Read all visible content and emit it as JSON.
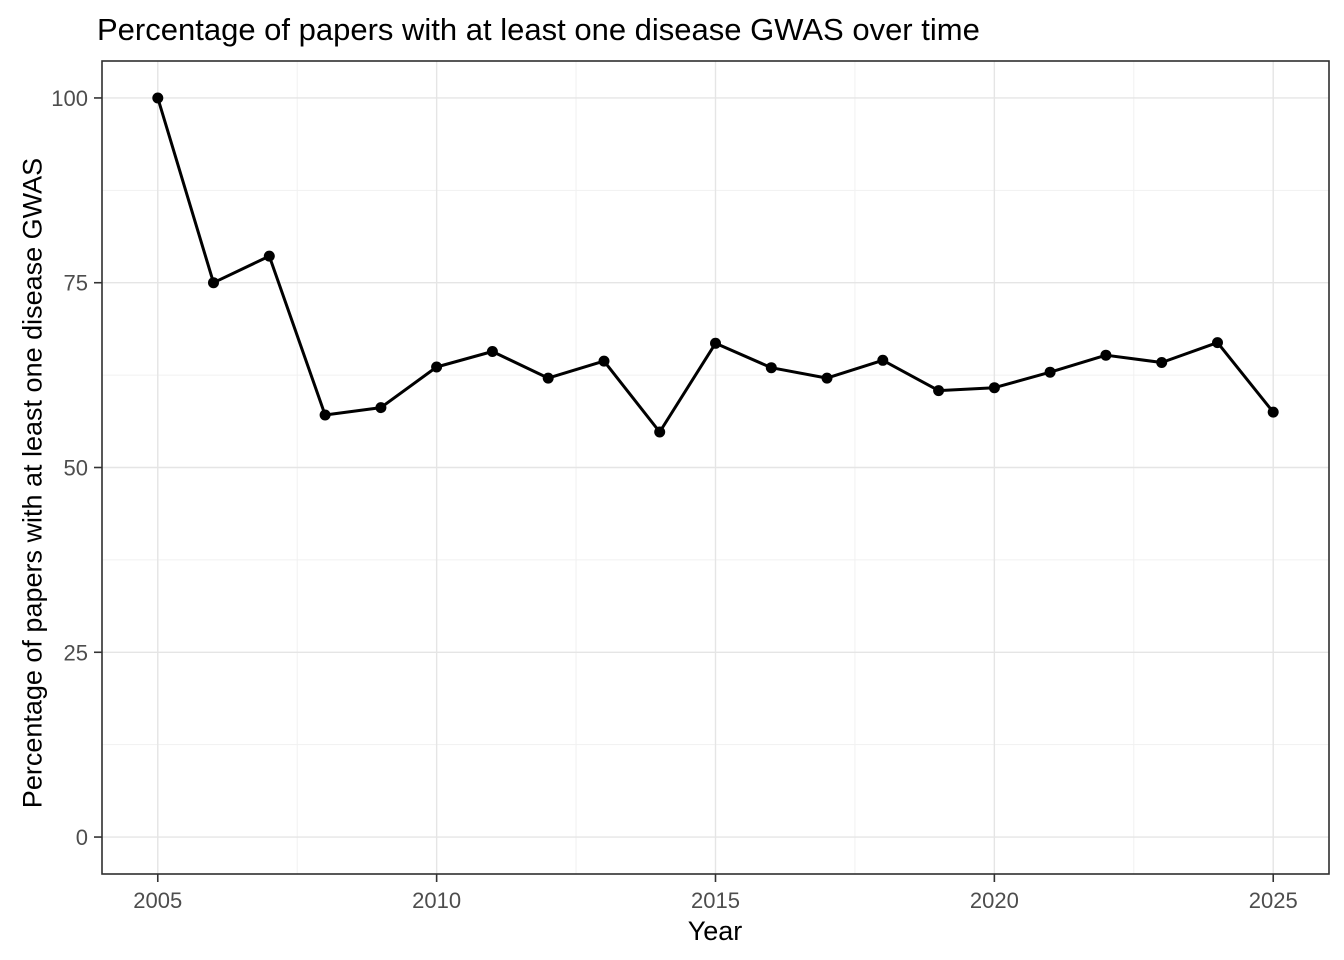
{
  "chart_data": {
    "type": "line",
    "title": "Percentage of papers with at least one disease GWAS over time",
    "xlabel": "Year",
    "ylabel": "Percentage of papers with at least one disease GWAS",
    "x": [
      2005,
      2006,
      2007,
      2008,
      2009,
      2010,
      2011,
      2012,
      2013,
      2014,
      2015,
      2016,
      2017,
      2018,
      2019,
      2020,
      2021,
      2022,
      2023,
      2024,
      2025
    ],
    "series": [
      {
        "name": "percent-papers-with-disease-gwas",
        "values": [
          100,
          75,
          78.6,
          57.1,
          58.1,
          63.6,
          65.7,
          62.1,
          64.4,
          54.8,
          66.8,
          63.5,
          62.1,
          64.5,
          60.4,
          60.8,
          62.9,
          65.2,
          64.2,
          66.9,
          57.5
        ]
      }
    ],
    "x_ticks": [
      2005,
      2010,
      2015,
      2020,
      2025
    ],
    "y_ticks": [
      0,
      25,
      50,
      75,
      100
    ],
    "x_minor_gridlines": [
      2007.5,
      2012.5,
      2017.5,
      2022.5
    ],
    "y_minor_gridlines": [
      12.5,
      37.5,
      62.5,
      87.5
    ],
    "xlim": [
      2004,
      2026
    ],
    "ylim": [
      -5,
      105
    ],
    "grid": true,
    "legend": false,
    "marker": "point",
    "colors": {
      "line": "#000000",
      "point": "#000000",
      "grid_major": "#e5e5e5",
      "grid_minor": "#f1f1f1",
      "panel_border": "#2f2f2f",
      "tick_mark": "#333333",
      "tick_label": "#4d4d4d",
      "title_text": "#000000",
      "background": "#ffffff"
    }
  }
}
